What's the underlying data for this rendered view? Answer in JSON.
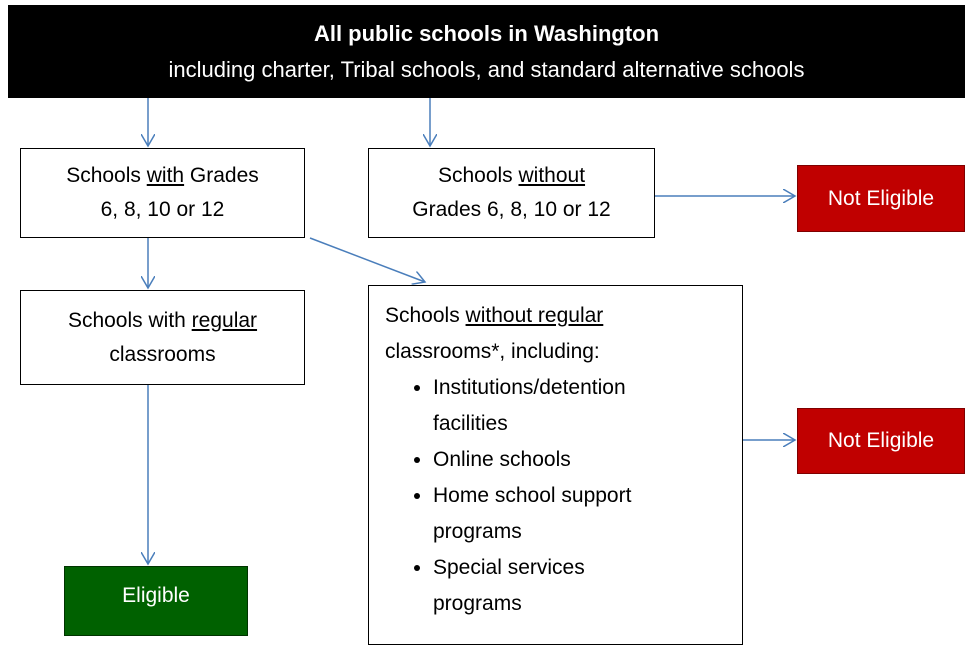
{
  "header": {
    "title": "All public schools in Washington",
    "subtitle": "including charter, Tribal schools, and standard alternative schools"
  },
  "nodes": {
    "with_grades": {
      "line1": [
        "Schools ",
        "with",
        " Grades"
      ],
      "line2": "6, 8, 10 or 12"
    },
    "without_grades": {
      "line1": [
        "Schools ",
        "without"
      ],
      "line2": "Grades 6, 8, 10 or 12"
    },
    "not_eligible_1": "Not Eligible",
    "with_regular": {
      "line1": [
        "Schools with ",
        "regular"
      ],
      "line2": "classrooms"
    },
    "without_regular": {
      "line1": [
        "Schools ",
        "without regular"
      ],
      "line2": "classrooms*, including:",
      "items": [
        "Institutions/detention facilities",
        "Online schools",
        "Home school support programs",
        "Special services programs"
      ]
    },
    "not_eligible_2": "Not Eligible",
    "eligible": "Eligible"
  }
}
